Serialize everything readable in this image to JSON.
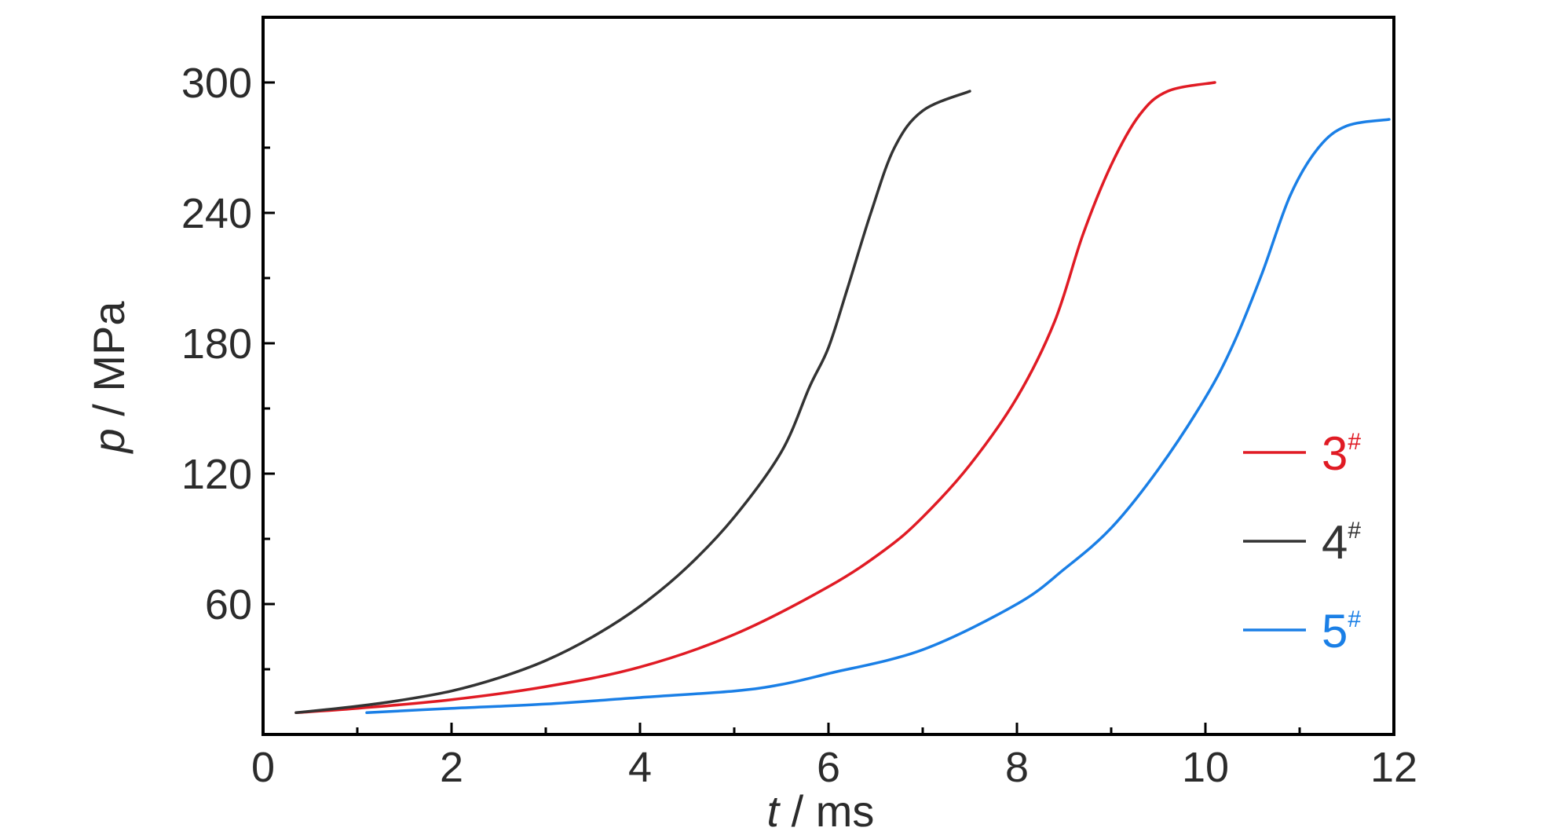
{
  "chart_data": {
    "type": "line",
    "xlabel": {
      "var": "t",
      "unit": " / ms"
    },
    "ylabel": {
      "var": "p",
      "unit": " / MPa"
    },
    "xlim": [
      0,
      12
    ],
    "ylim": [
      0,
      330
    ],
    "x_ticks": [
      0,
      2,
      4,
      6,
      8,
      10,
      12
    ],
    "y_ticks": [
      60,
      120,
      180,
      240,
      300
    ],
    "grid": false,
    "legend_position": "right",
    "series": [
      {
        "name": "3",
        "sup": "#",
        "color": "#e01b24",
        "points": [
          [
            0.35,
            10
          ],
          [
            1,
            12
          ],
          [
            2,
            16
          ],
          [
            3,
            22
          ],
          [
            4,
            31
          ],
          [
            5,
            46
          ],
          [
            6,
            68
          ],
          [
            6.6,
            85
          ],
          [
            7,
            100
          ],
          [
            7.5,
            124
          ],
          [
            8,
            155
          ],
          [
            8.4,
            190
          ],
          [
            8.7,
            230
          ],
          [
            9,
            262
          ],
          [
            9.3,
            285
          ],
          [
            9.6,
            296
          ],
          [
            10.1,
            300
          ]
        ]
      },
      {
        "name": "4",
        "sup": "#",
        "color": "#333333",
        "points": [
          [
            0.35,
            10
          ],
          [
            1,
            13
          ],
          [
            1.5,
            16
          ],
          [
            2,
            20
          ],
          [
            2.5,
            26
          ],
          [
            3,
            34
          ],
          [
            3.5,
            45
          ],
          [
            4,
            59
          ],
          [
            4.5,
            77
          ],
          [
            5,
            100
          ],
          [
            5.5,
            130
          ],
          [
            5.8,
            160
          ],
          [
            6,
            178
          ],
          [
            6.2,
            205
          ],
          [
            6.45,
            240
          ],
          [
            6.7,
            270
          ],
          [
            7,
            287
          ],
          [
            7.5,
            296
          ]
        ]
      },
      {
        "name": "5",
        "sup": "#",
        "color": "#1a7fe6",
        "points": [
          [
            1.1,
            10
          ],
          [
            2,
            12
          ],
          [
            3,
            14
          ],
          [
            4,
            17
          ],
          [
            5,
            20
          ],
          [
            5.5,
            23
          ],
          [
            6,
            28
          ],
          [
            7,
            39
          ],
          [
            8,
            60
          ],
          [
            8.5,
            76
          ],
          [
            9,
            95
          ],
          [
            9.5,
            122
          ],
          [
            10,
            155
          ],
          [
            10.3,
            180
          ],
          [
            10.6,
            212
          ],
          [
            10.9,
            248
          ],
          [
            11.2,
            270
          ],
          [
            11.5,
            280
          ],
          [
            11.95,
            283
          ]
        ]
      }
    ]
  }
}
